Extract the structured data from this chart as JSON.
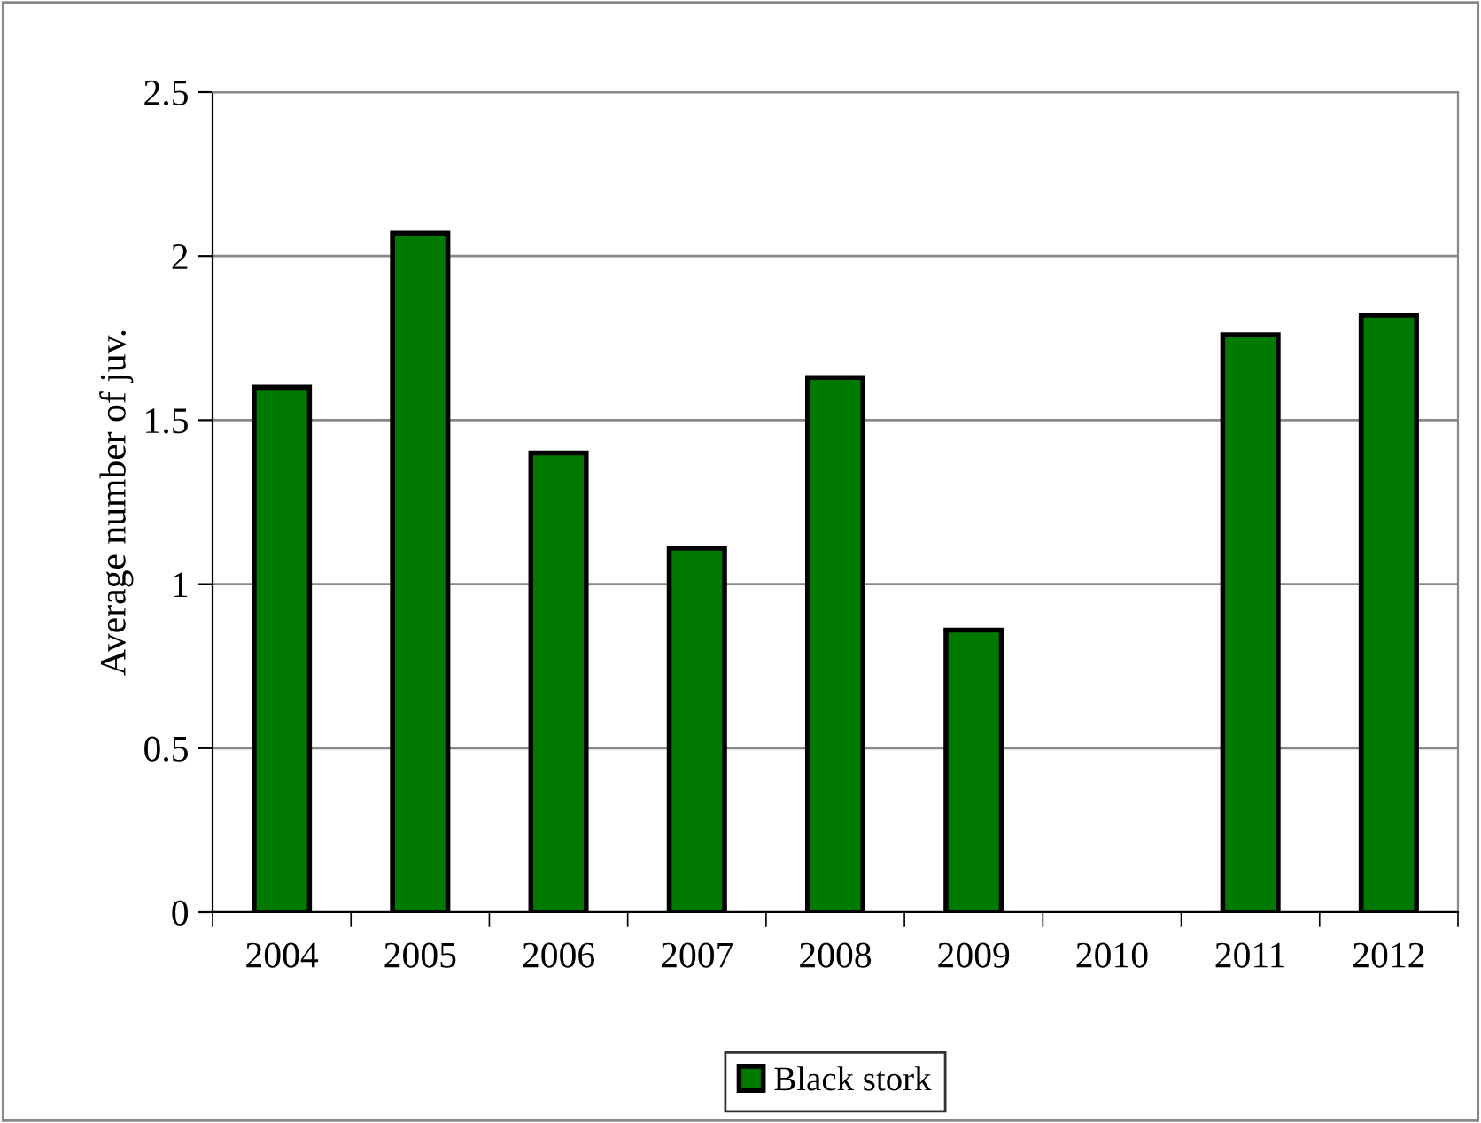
{
  "chart_data": {
    "type": "bar",
    "ylabel": "Average number of juv.",
    "categories": [
      "2004",
      "2005",
      "2006",
      "2007",
      "2008",
      "2009",
      "2010",
      "2011",
      "2012"
    ],
    "series": [
      {
        "name": "Black stork",
        "color": "#007a00",
        "values": [
          1.6,
          2.07,
          1.4,
          1.11,
          1.63,
          0.86,
          null,
          1.76,
          1.82
        ]
      }
    ],
    "ylim": [
      0,
      2.5
    ],
    "yticks": [
      0,
      0.5,
      1,
      1.5,
      2,
      2.5
    ],
    "grid": "y",
    "legend": "bottom"
  }
}
